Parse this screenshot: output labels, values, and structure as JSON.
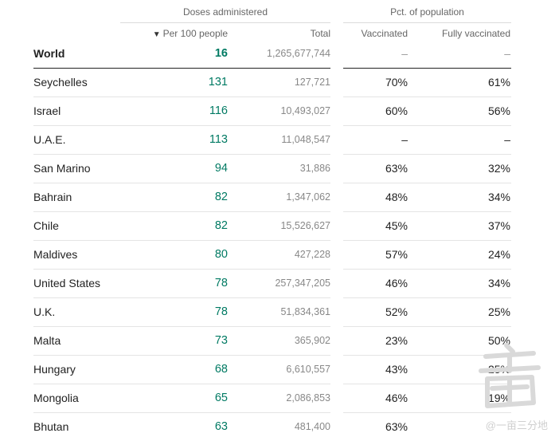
{
  "header": {
    "doses_group": "Doses administered",
    "pct_group": "Pct. of population",
    "col_per100": "Per 100 people",
    "col_total": "Total",
    "col_vaccinated": "Vaccinated",
    "col_fully": "Fully vaccinated",
    "sort_icon": "▼"
  },
  "world": {
    "name": "World",
    "per100": "16",
    "total": "1,265,677,744",
    "vaccinated": "–",
    "fully": "–"
  },
  "rows": [
    {
      "name": "Seychelles",
      "per100": "131",
      "total": "127,721",
      "vaccinated": "70%",
      "fully": "61%"
    },
    {
      "name": "Israel",
      "per100": "116",
      "total": "10,493,027",
      "vaccinated": "60%",
      "fully": "56%"
    },
    {
      "name": "U.A.E.",
      "per100": "113",
      "total": "11,048,547",
      "vaccinated": "–",
      "fully": "–"
    },
    {
      "name": "San Marino",
      "per100": "94",
      "total": "31,886",
      "vaccinated": "63%",
      "fully": "32%"
    },
    {
      "name": "Bahrain",
      "per100": "82",
      "total": "1,347,062",
      "vaccinated": "48%",
      "fully": "34%"
    },
    {
      "name": "Chile",
      "per100": "82",
      "total": "15,526,627",
      "vaccinated": "45%",
      "fully": "37%"
    },
    {
      "name": "Maldives",
      "per100": "80",
      "total": "427,228",
      "vaccinated": "57%",
      "fully": "24%"
    },
    {
      "name": "United States",
      "per100": "78",
      "total": "257,347,205",
      "vaccinated": "46%",
      "fully": "34%"
    },
    {
      "name": "U.K.",
      "per100": "78",
      "total": "51,834,361",
      "vaccinated": "52%",
      "fully": "25%"
    },
    {
      "name": "Malta",
      "per100": "73",
      "total": "365,902",
      "vaccinated": "23%",
      "fully": "50%"
    },
    {
      "name": "Hungary",
      "per100": "68",
      "total": "6,610,557",
      "vaccinated": "43%",
      "fully": "25%"
    },
    {
      "name": "Mongolia",
      "per100": "65",
      "total": "2,086,853",
      "vaccinated": "46%",
      "fully": "19%"
    },
    {
      "name": "Bhutan",
      "per100": "63",
      "total": "481,400",
      "vaccinated": "63%",
      "fully": ""
    }
  ],
  "watermark": {
    "text": "@一亩三分地"
  },
  "colors": {
    "per100": "#007a63",
    "total": "#888888"
  }
}
